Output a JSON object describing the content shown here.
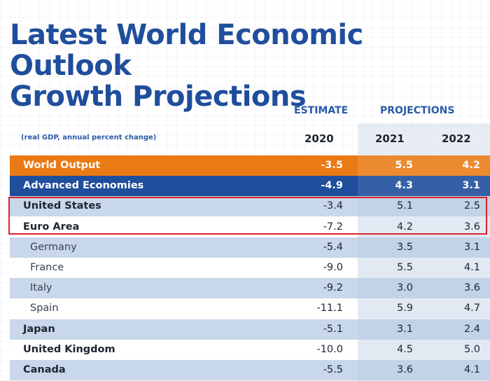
{
  "title_line1": "Latest World Economic Outlook",
  "title_line2": "Growth Projections",
  "header": {
    "estimate": "ESTIMATE",
    "projections": "PROJECTIONS",
    "subtitle": "(real GDP, annual percent change)",
    "years": [
      "2020",
      "2021",
      "2022"
    ]
  },
  "colors": {
    "title": "#1f4e9c",
    "world_output": "#ea7a13",
    "advanced": "#1f4e9c",
    "highlight": "#d9242b"
  },
  "chart_data": {
    "type": "table",
    "columns": [
      "2020",
      "2021",
      "2022"
    ],
    "rows": [
      {
        "label": "World Output",
        "values": [
          "-3.5",
          "5.5",
          "4.2"
        ],
        "style": "world",
        "indent": false
      },
      {
        "label": "Advanced Economies",
        "values": [
          "-4.9",
          "4.3",
          "3.1"
        ],
        "style": "advanced",
        "indent": false
      },
      {
        "label": "United States",
        "values": [
          "-3.4",
          "5.1",
          "2.5"
        ],
        "style": "blue",
        "indent": false,
        "highlighted": true
      },
      {
        "label": "Euro Area",
        "values": [
          "-7.2",
          "4.2",
          "3.6"
        ],
        "style": "white",
        "indent": false,
        "highlighted": true
      },
      {
        "label": "Germany",
        "values": [
          "-5.4",
          "3.5",
          "3.1"
        ],
        "style": "blue",
        "indent": true
      },
      {
        "label": "France",
        "values": [
          "-9.0",
          "5.5",
          "4.1"
        ],
        "style": "white",
        "indent": true
      },
      {
        "label": "Italy",
        "values": [
          "-9.2",
          "3.0",
          "3.6"
        ],
        "style": "blue",
        "indent": true
      },
      {
        "label": "Spain",
        "values": [
          "-11.1",
          "5.9",
          "4.7"
        ],
        "style": "white",
        "indent": true
      },
      {
        "label": "Japan",
        "values": [
          "-5.1",
          "3.1",
          "2.4"
        ],
        "style": "blue",
        "indent": false
      },
      {
        "label": "United Kingdom",
        "values": [
          "-10.0",
          "4.5",
          "5.0"
        ],
        "style": "white",
        "indent": false
      },
      {
        "label": "Canada",
        "values": [
          "-5.5",
          "3.6",
          "4.1"
        ],
        "style": "blue",
        "indent": false
      }
    ]
  }
}
